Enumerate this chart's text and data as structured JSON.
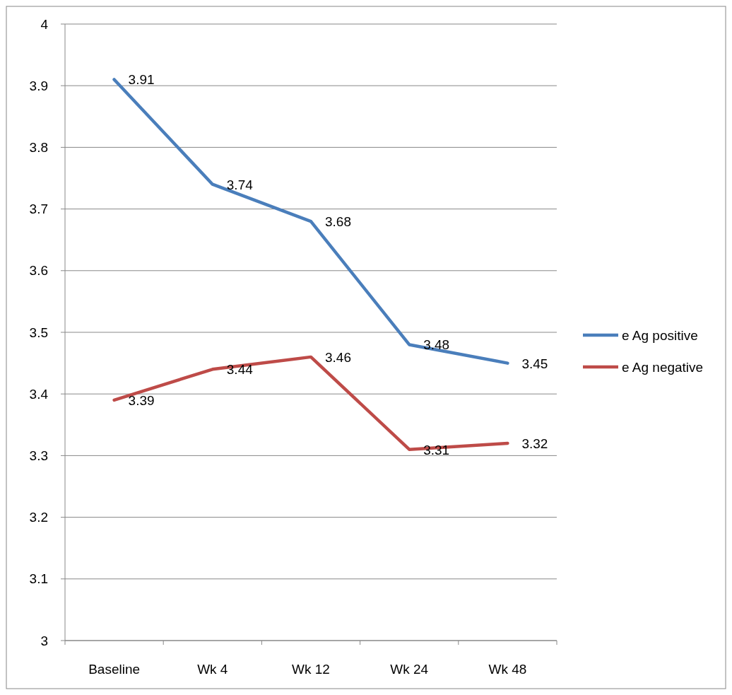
{
  "chart_data": {
    "type": "line",
    "categories": [
      "Baseline",
      "Wk 4",
      "Wk 12",
      "Wk 24",
      "Wk 48"
    ],
    "series": [
      {
        "name": "e Ag positive",
        "color": "#4a7ebb",
        "values": [
          3.91,
          3.74,
          3.68,
          3.48,
          3.45
        ]
      },
      {
        "name": "e Ag negative",
        "color": "#be4b48",
        "values": [
          3.39,
          3.44,
          3.46,
          3.31,
          3.32
        ]
      }
    ],
    "ylim": [
      3,
      4
    ],
    "yticks": [
      3,
      3.1,
      3.2,
      3.3,
      3.4,
      3.5,
      3.6,
      3.7,
      3.8,
      3.9,
      4
    ],
    "grid": "y",
    "legend": "right",
    "data_labels": true,
    "marker": "none",
    "line_style": "solid"
  }
}
